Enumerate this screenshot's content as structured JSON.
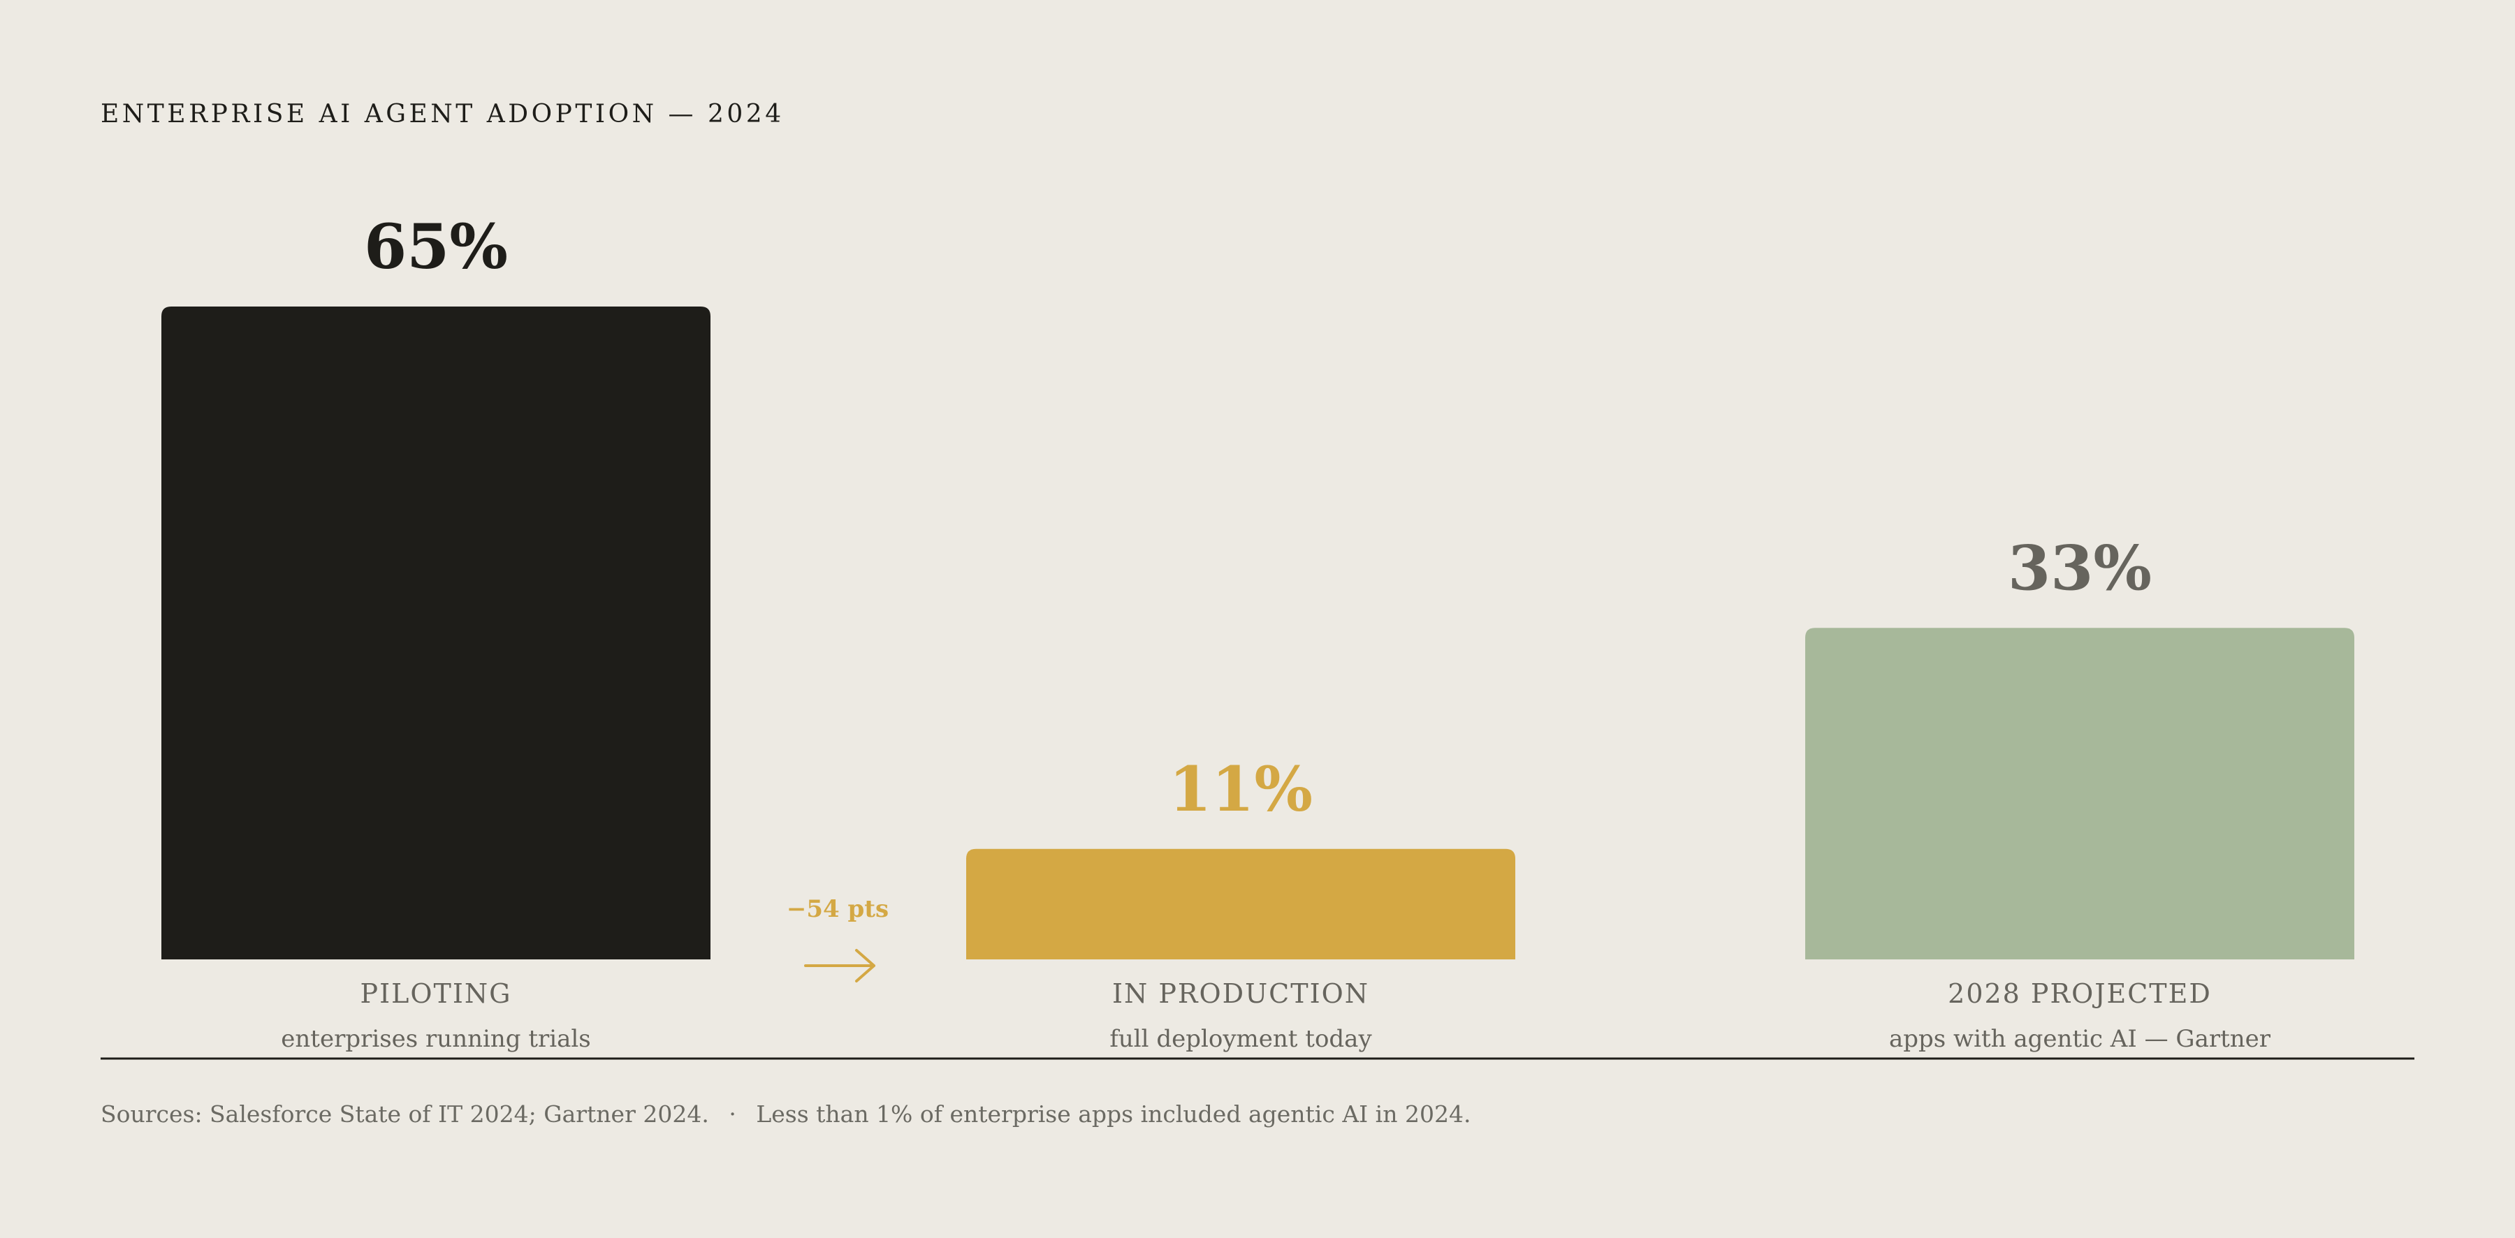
{
  "title": "ENTERPRISE AI AGENT ADOPTION — 2024",
  "chart_data": {
    "type": "bar",
    "title": "ENTERPRISE AI AGENT ADOPTION — 2024",
    "categories": [
      "PILOTING",
      "IN PRODUCTION",
      "2028 PROJECTED"
    ],
    "sublabels": [
      "enterprises running trials",
      "full deployment today",
      "apps with agentic AI — Gartner"
    ],
    "values": [
      65,
      11,
      33
    ],
    "value_labels": [
      "65%",
      "11%",
      "33%"
    ],
    "colors": [
      "#1E1D19",
      "#D4A844",
      "#A7B89A"
    ],
    "value_label_colors": [
      "#1E1D19",
      "#D4A844",
      "#66645D"
    ],
    "ylim": [
      0,
      65
    ],
    "grid": false,
    "annotation": {
      "text": "−54 pts",
      "between": [
        "PILOTING",
        "IN PRODUCTION"
      ],
      "color": "#D4A844"
    }
  },
  "footer": {
    "sources": "Sources: Salesforce State of IT 2024; Gartner 2024.",
    "separator": "·",
    "note": "Less than 1% of enterprise apps included agentic AI in 2024."
  }
}
